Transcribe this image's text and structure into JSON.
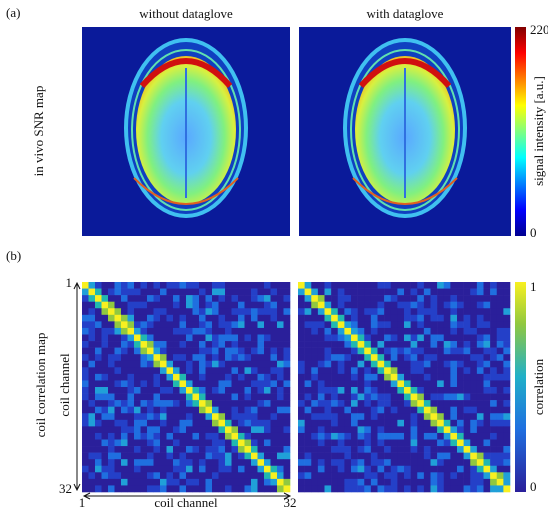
{
  "panel_a": {
    "label": "(a)",
    "titles": [
      "without dataglove",
      "with dataglove"
    ],
    "row_label": "in vivo SNR map",
    "colorbar": {
      "label": "signal intensity [a.u.]",
      "max": "220",
      "min": "0"
    }
  },
  "panel_b": {
    "label": "(b)",
    "row_label": "coil correlation map",
    "axis_label": "coil channel",
    "axis_start": "1",
    "axis_end": "32",
    "colorbar": {
      "label": "correlation",
      "max": "1",
      "min": "0"
    }
  }
}
